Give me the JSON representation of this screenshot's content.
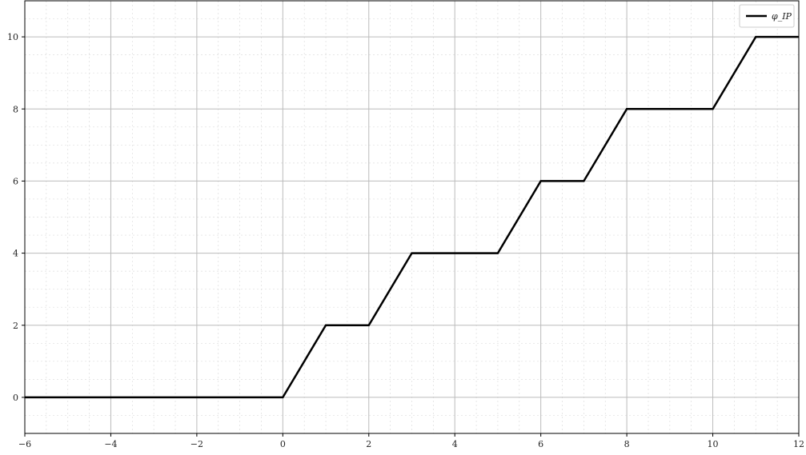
{
  "chart_data": {
    "type": "line",
    "title": "",
    "xlabel": "",
    "ylabel": "",
    "xlim": [
      -6,
      12
    ],
    "ylim": [
      -1,
      11
    ],
    "xticks": [
      -6,
      -4,
      -2,
      0,
      2,
      4,
      6,
      8,
      10,
      12
    ],
    "yticks": [
      0,
      2,
      4,
      6,
      8,
      10
    ],
    "grid": true,
    "minor_grid": true,
    "legend_position": "top-right",
    "series": [
      {
        "name": "φ_IP",
        "color": "#000000",
        "x": [
          -6,
          0,
          1,
          2,
          3,
          5,
          6,
          7,
          8,
          10,
          11,
          12
        ],
        "y": [
          0,
          0,
          2,
          2,
          4,
          4,
          6,
          6,
          8,
          8,
          10,
          10
        ]
      }
    ]
  }
}
